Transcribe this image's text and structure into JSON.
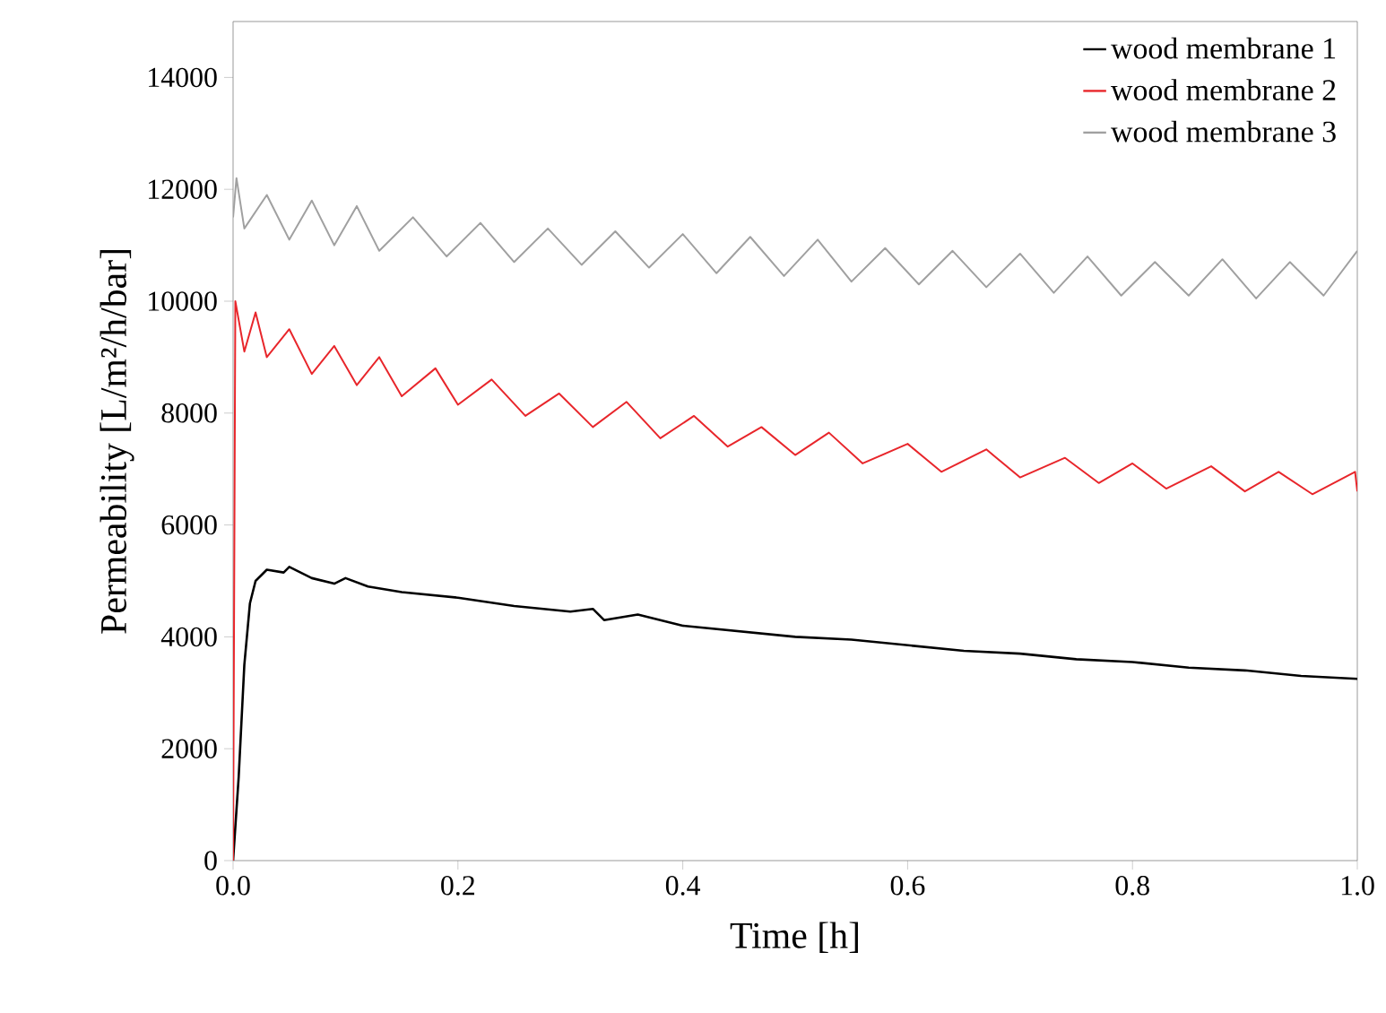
{
  "chart_data": {
    "type": "line",
    "xlabel": "Time [h]",
    "ylabel": "Permeability [L/m²/h/bar]",
    "xlim": [
      0,
      1
    ],
    "ylim": [
      0,
      15000
    ],
    "xticks": [
      {
        "value": 0,
        "label": "0.0"
      },
      {
        "value": 0.2,
        "label": "0.2"
      },
      {
        "value": 0.4,
        "label": "0.4"
      },
      {
        "value": 0.6,
        "label": "0.6"
      },
      {
        "value": 0.8,
        "label": "0.8"
      },
      {
        "value": 1,
        "label": "1.0"
      }
    ],
    "yticks": [
      0,
      2000,
      4000,
      6000,
      8000,
      10000,
      12000,
      14000
    ],
    "legend": "top right",
    "series": [
      {
        "name": "wood membrane 1",
        "color": "#000000",
        "x": [
          0,
          0.005,
          0.01,
          0.015,
          0.02,
          0.03,
          0.045,
          0.05,
          0.07,
          0.09,
          0.1,
          0.12,
          0.15,
          0.2,
          0.25,
          0.3,
          0.32,
          0.33,
          0.36,
          0.4,
          0.45,
          0.5,
          0.55,
          0.6,
          0.65,
          0.7,
          0.75,
          0.8,
          0.85,
          0.9,
          0.95,
          1.0
        ],
        "values": [
          0,
          1500,
          3500,
          4600,
          5000,
          5200,
          5150,
          5250,
          5050,
          4950,
          5050,
          4900,
          4800,
          4700,
          4550,
          4450,
          4500,
          4300,
          4400,
          4200,
          4100,
          4000,
          3950,
          3850,
          3750,
          3700,
          3600,
          3550,
          3450,
          3400,
          3300,
          3250
        ]
      },
      {
        "name": "wood membrane 2",
        "color": "#e8262b",
        "x": [
          0,
          0.002,
          0.01,
          0.02,
          0.03,
          0.05,
          0.07,
          0.09,
          0.11,
          0.13,
          0.15,
          0.18,
          0.2,
          0.23,
          0.26,
          0.29,
          0.32,
          0.35,
          0.38,
          0.41,
          0.44,
          0.47,
          0.5,
          0.53,
          0.56,
          0.6,
          0.63,
          0.67,
          0.7,
          0.74,
          0.77,
          0.8,
          0.83,
          0.87,
          0.9,
          0.93,
          0.96,
          0.998,
          1.0
        ],
        "values": [
          0,
          10000,
          9100,
          9800,
          9000,
          9500,
          8700,
          9200,
          8500,
          9000,
          8300,
          8800,
          8150,
          8600,
          7950,
          8350,
          7750,
          8200,
          7550,
          7950,
          7400,
          7750,
          7250,
          7650,
          7100,
          7450,
          6950,
          7350,
          6850,
          7200,
          6750,
          7100,
          6650,
          7050,
          6600,
          6950,
          6550,
          6950,
          6600
        ]
      },
      {
        "name": "wood membrane 3",
        "color": "#a0a0a0",
        "x": [
          0,
          0.003,
          0.01,
          0.03,
          0.05,
          0.07,
          0.09,
          0.11,
          0.13,
          0.16,
          0.19,
          0.22,
          0.25,
          0.28,
          0.31,
          0.34,
          0.37,
          0.4,
          0.43,
          0.46,
          0.49,
          0.52,
          0.55,
          0.58,
          0.61,
          0.64,
          0.67,
          0.7,
          0.73,
          0.76,
          0.79,
          0.82,
          0.85,
          0.88,
          0.91,
          0.94,
          0.97,
          1.0
        ],
        "values": [
          11500,
          12200,
          11300,
          11900,
          11100,
          11800,
          11000,
          11700,
          10900,
          11500,
          10800,
          11400,
          10700,
          11300,
          10650,
          11250,
          10600,
          11200,
          10500,
          11150,
          10450,
          11100,
          10350,
          10950,
          10300,
          10900,
          10250,
          10850,
          10150,
          10800,
          10100,
          10700,
          10100,
          10750,
          10050,
          10700,
          10100,
          10900
        ]
      }
    ]
  }
}
